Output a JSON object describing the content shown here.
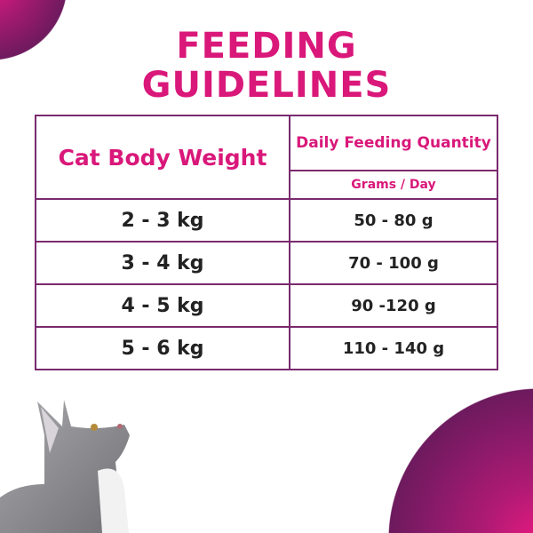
{
  "title_lines": [
    "FEEDING",
    "GUIDELINES"
  ],
  "table": {
    "header_weight": "Cat Body Weight",
    "header_quantity": "Daily Feeding Quantity",
    "header_unit": "Grams / Day",
    "rows": [
      {
        "weight": "2 - 3 kg",
        "quantity": "50 - 80 g"
      },
      {
        "weight": "3 - 4 kg",
        "quantity": "70 - 100 g"
      },
      {
        "weight": "4 - 5 kg",
        "quantity": "90 -120 g"
      },
      {
        "weight": "5 - 6 kg",
        "quantity": "110 - 140 g"
      }
    ]
  },
  "colors": {
    "accent": "#d9187a",
    "border": "#7a2a6e",
    "gradient_dark": "#6e1a5f"
  }
}
